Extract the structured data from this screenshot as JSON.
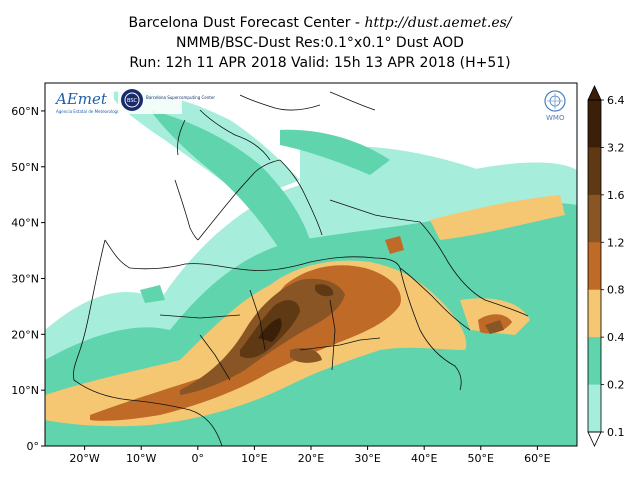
{
  "header": {
    "line1_text": "Barcelona Dust Forecast Center - ",
    "line1_url": "http://dust.aemet.es/",
    "line2": "NMMB/BSC-Dust   Res:0.1°x0.1°   Dust AOD",
    "line3": "Run: 12h 11 APR 2018   Valid: 15h 13 APR 2018 (H+51)"
  },
  "logos": {
    "aemet": "AEmet",
    "aemet_sub": "Agencia Estatal de Meteorología",
    "bsc_badge": "BSC",
    "bsc_text": "Barcelona Supercomputing Center",
    "wmo": "WMO"
  },
  "map": {
    "lat_ticks": [
      "0°",
      "10°N",
      "20°N",
      "30°N",
      "40°N",
      "50°N",
      "60°N"
    ],
    "lon_ticks": [
      "20°W",
      "10°W",
      "0°",
      "10°E",
      "20°E",
      "30°E",
      "40°E",
      "50°E",
      "60°E"
    ],
    "extent": {
      "lon_min": -27,
      "lon_max": 67,
      "lat_min": 0,
      "lat_max": 65
    }
  },
  "colorbar": {
    "labels": [
      "6.4",
      "3.2",
      "1.6",
      "1.2",
      "0.8",
      "0.4",
      "0.2",
      "0.1"
    ],
    "colors": [
      "#3a2008",
      "#5e3914",
      "#8a5524",
      "#c06a28",
      "#f5c773",
      "#5fd4ad",
      "#a6eedb"
    ]
  }
}
